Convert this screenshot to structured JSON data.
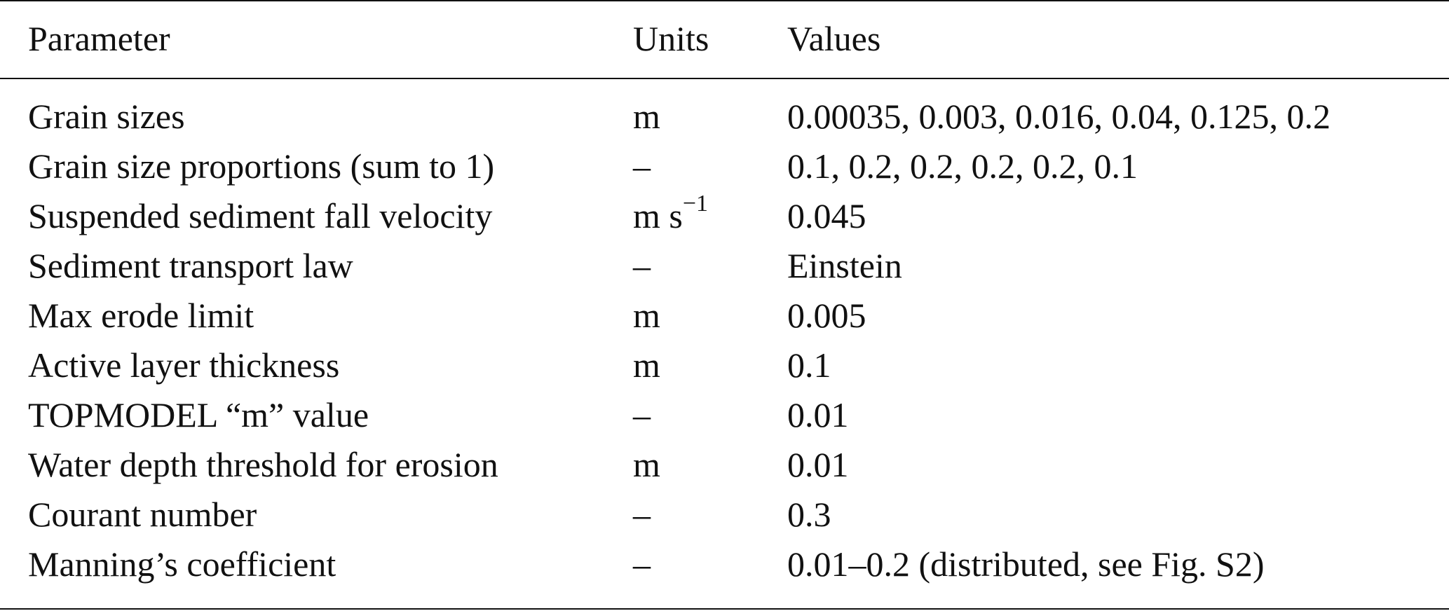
{
  "table": {
    "headers": {
      "parameter": "Parameter",
      "units": "Units",
      "values": "Values"
    },
    "rows": [
      {
        "parameter": "Grain sizes",
        "units": "m",
        "units_sup": "",
        "values": "0.00035, 0.003, 0.016, 0.04, 0.125, 0.2"
      },
      {
        "parameter": "Grain size proportions (sum to 1)",
        "units": "–",
        "units_sup": "",
        "values": "0.1, 0.2, 0.2, 0.2, 0.2, 0.1"
      },
      {
        "parameter": "Suspended sediment fall velocity",
        "units": "m s",
        "units_sup": "−1",
        "values": "0.045"
      },
      {
        "parameter": "Sediment transport law",
        "units": "–",
        "units_sup": "",
        "values": "Einstein"
      },
      {
        "parameter": "Max erode limit",
        "units": "m",
        "units_sup": "",
        "values": "0.005"
      },
      {
        "parameter": "Active layer thickness",
        "units": "m",
        "units_sup": "",
        "values": "0.1"
      },
      {
        "parameter": "TOPMODEL “m” value",
        "units": "–",
        "units_sup": "",
        "values": "0.01"
      },
      {
        "parameter": "Water depth threshold for erosion",
        "units": "m",
        "units_sup": "",
        "values": "0.01"
      },
      {
        "parameter": "Courant number",
        "units": "–",
        "units_sup": "",
        "values": "0.3"
      },
      {
        "parameter": "Manning’s coefficient",
        "units": "–",
        "units_sup": "",
        "values": "0.01–0.2 (distributed, see Fig. S2)"
      }
    ]
  }
}
